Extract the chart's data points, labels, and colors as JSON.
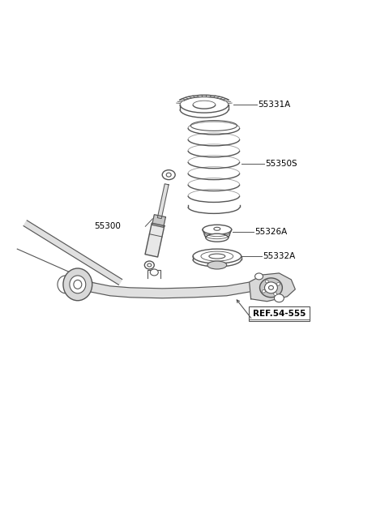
{
  "background_color": "#ffffff",
  "line_color": "#555555",
  "label_color": "#000000",
  "fig_width": 4.8,
  "fig_height": 6.55,
  "dpi": 100,
  "parts_labels": {
    "55331A": "55331A",
    "55350S": "55350S",
    "55326A": "55326A",
    "55332A": "55332A",
    "55300": "55300",
    "REF": "REF.54-555"
  }
}
